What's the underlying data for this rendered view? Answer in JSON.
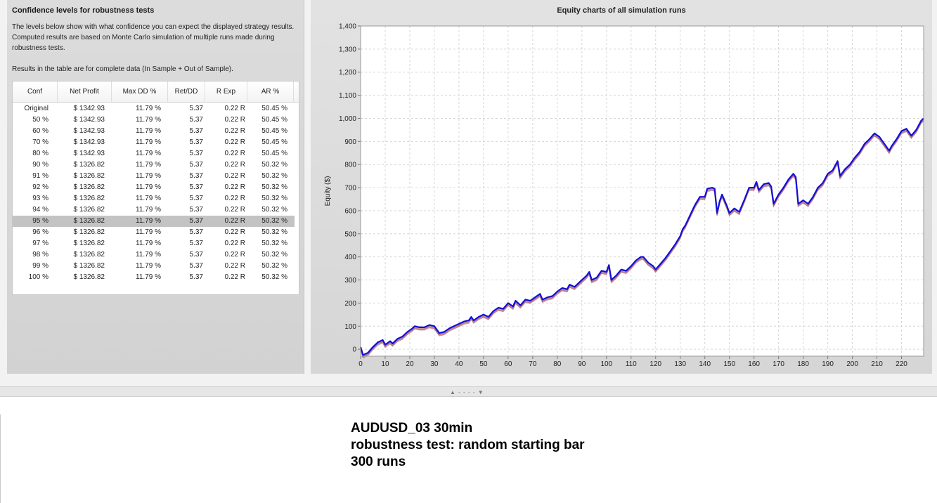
{
  "left_panel": {
    "title": "Confidence levels for robustness tests",
    "description": "The levels below show with what confidence you can expect the displayed strategy results. Computed results are based on Monte Carlo simulation of multiple runs made during robustness tests.",
    "note": "Results in the table are for complete data (In Sample + Out of Sample).",
    "table": {
      "columns": [
        "Conf",
        "Net Profit",
        "Max DD %",
        "Ret/DD",
        "R Exp",
        "AR %"
      ],
      "selected_row": 10,
      "rows": [
        [
          "Original",
          "$ 1342.93",
          "11.79 %",
          "5.37",
          "0.22 R",
          "50.45 %"
        ],
        [
          "50 %",
          "$ 1342.93",
          "11.79 %",
          "5.37",
          "0.22 R",
          "50.45 %"
        ],
        [
          "60 %",
          "$ 1342.93",
          "11.79 %",
          "5.37",
          "0.22 R",
          "50.45 %"
        ],
        [
          "70 %",
          "$ 1342.93",
          "11.79 %",
          "5.37",
          "0.22 R",
          "50.45 %"
        ],
        [
          "80 %",
          "$ 1342.93",
          "11.79 %",
          "5.37",
          "0.22 R",
          "50.45 %"
        ],
        [
          "90 %",
          "$ 1326.82",
          "11.79 %",
          "5.37",
          "0.22 R",
          "50.32 %"
        ],
        [
          "91 %",
          "$ 1326.82",
          "11.79 %",
          "5.37",
          "0.22 R",
          "50.32 %"
        ],
        [
          "92 %",
          "$ 1326.82",
          "11.79 %",
          "5.37",
          "0.22 R",
          "50.32 %"
        ],
        [
          "93 %",
          "$ 1326.82",
          "11.79 %",
          "5.37",
          "0.22 R",
          "50.32 %"
        ],
        [
          "94 %",
          "$ 1326.82",
          "11.79 %",
          "5.37",
          "0.22 R",
          "50.32 %"
        ],
        [
          "95 %",
          "$ 1326.82",
          "11.79 %",
          "5.37",
          "0.22 R",
          "50.32 %"
        ],
        [
          "96 %",
          "$ 1326.82",
          "11.79 %",
          "5.37",
          "0.22 R",
          "50.32 %"
        ],
        [
          "97 %",
          "$ 1326.82",
          "11.79 %",
          "5.37",
          "0.22 R",
          "50.32 %"
        ],
        [
          "98 %",
          "$ 1326.82",
          "11.79 %",
          "5.37",
          "0.22 R",
          "50.32 %"
        ],
        [
          "99 %",
          "$ 1326.82",
          "11.79 %",
          "5.37",
          "0.22 R",
          "50.32 %"
        ],
        [
          "100 %",
          "$ 1326.82",
          "11.79 %",
          "5.37",
          "0.22 R",
          "50.32 %"
        ]
      ]
    }
  },
  "chart_data": {
    "type": "line",
    "title": "Equity charts of all simulation runs",
    "ylabel": "Equity ($)",
    "xlabel": "",
    "xlim": [
      0,
      229
    ],
    "ylim": [
      -30,
      1400
    ],
    "xticks": [
      0,
      10,
      20,
      30,
      40,
      50,
      60,
      70,
      80,
      90,
      100,
      110,
      120,
      130,
      140,
      150,
      160,
      170,
      180,
      190,
      200,
      210,
      220
    ],
    "yticks": [
      0,
      100,
      200,
      300,
      400,
      500,
      600,
      700,
      800,
      900,
      1000,
      1100,
      1200,
      1300,
      1400
    ],
    "grid": true,
    "colors": {
      "main_series": "#1010d8",
      "other_runs": "#b06a7a"
    },
    "points": [
      [
        0,
        10
      ],
      [
        1,
        -25
      ],
      [
        3,
        -15
      ],
      [
        5,
        10
      ],
      [
        7,
        30
      ],
      [
        9,
        40
      ],
      [
        10,
        20
      ],
      [
        12,
        35
      ],
      [
        13,
        25
      ],
      [
        15,
        45
      ],
      [
        17,
        55
      ],
      [
        19,
        75
      ],
      [
        21,
        90
      ],
      [
        22,
        100
      ],
      [
        24,
        95
      ],
      [
        26,
        95
      ],
      [
        28,
        105
      ],
      [
        30,
        100
      ],
      [
        31,
        85
      ],
      [
        32,
        70
      ],
      [
        34,
        75
      ],
      [
        36,
        90
      ],
      [
        38,
        100
      ],
      [
        40,
        110
      ],
      [
        42,
        120
      ],
      [
        44,
        125
      ],
      [
        45,
        140
      ],
      [
        46,
        125
      ],
      [
        48,
        140
      ],
      [
        50,
        150
      ],
      [
        52,
        140
      ],
      [
        54,
        165
      ],
      [
        56,
        180
      ],
      [
        58,
        175
      ],
      [
        60,
        200
      ],
      [
        62,
        185
      ],
      [
        63,
        210
      ],
      [
        65,
        190
      ],
      [
        67,
        215
      ],
      [
        69,
        210
      ],
      [
        71,
        225
      ],
      [
        73,
        240
      ],
      [
        74,
        215
      ],
      [
        76,
        225
      ],
      [
        78,
        230
      ],
      [
        80,
        250
      ],
      [
        82,
        265
      ],
      [
        84,
        260
      ],
      [
        85,
        280
      ],
      [
        87,
        270
      ],
      [
        89,
        290
      ],
      [
        90,
        300
      ],
      [
        92,
        320
      ],
      [
        93,
        335
      ],
      [
        94,
        300
      ],
      [
        96,
        310
      ],
      [
        98,
        340
      ],
      [
        100,
        335
      ],
      [
        101,
        365
      ],
      [
        102,
        300
      ],
      [
        104,
        320
      ],
      [
        106,
        345
      ],
      [
        108,
        340
      ],
      [
        110,
        360
      ],
      [
        112,
        385
      ],
      [
        114,
        400
      ],
      [
        115,
        400
      ],
      [
        117,
        375
      ],
      [
        119,
        360
      ],
      [
        120,
        345
      ],
      [
        122,
        370
      ],
      [
        124,
        395
      ],
      [
        126,
        425
      ],
      [
        128,
        455
      ],
      [
        130,
        490
      ],
      [
        131,
        520
      ],
      [
        132,
        535
      ],
      [
        134,
        580
      ],
      [
        136,
        625
      ],
      [
        138,
        660
      ],
      [
        140,
        660
      ],
      [
        141,
        695
      ],
      [
        143,
        700
      ],
      [
        144,
        695
      ],
      [
        145,
        590
      ],
      [
        146,
        640
      ],
      [
        147,
        670
      ],
      [
        149,
        620
      ],
      [
        150,
        590
      ],
      [
        152,
        610
      ],
      [
        154,
        595
      ],
      [
        156,
        645
      ],
      [
        158,
        700
      ],
      [
        160,
        700
      ],
      [
        161,
        725
      ],
      [
        162,
        690
      ],
      [
        164,
        715
      ],
      [
        166,
        720
      ],
      [
        167,
        705
      ],
      [
        168,
        630
      ],
      [
        170,
        670
      ],
      [
        172,
        700
      ],
      [
        174,
        735
      ],
      [
        176,
        760
      ],
      [
        177,
        745
      ],
      [
        178,
        630
      ],
      [
        180,
        645
      ],
      [
        182,
        630
      ],
      [
        184,
        660
      ],
      [
        186,
        700
      ],
      [
        188,
        720
      ],
      [
        190,
        760
      ],
      [
        192,
        775
      ],
      [
        193,
        795
      ],
      [
        194,
        815
      ],
      [
        195,
        750
      ],
      [
        197,
        780
      ],
      [
        199,
        800
      ],
      [
        201,
        830
      ],
      [
        203,
        855
      ],
      [
        205,
        890
      ],
      [
        207,
        910
      ],
      [
        209,
        935
      ],
      [
        211,
        920
      ],
      [
        213,
        890
      ],
      [
        215,
        860
      ],
      [
        216,
        880
      ],
      [
        218,
        910
      ],
      [
        220,
        945
      ],
      [
        222,
        955
      ],
      [
        224,
        925
      ],
      [
        226,
        950
      ],
      [
        228,
        990
      ],
      [
        229,
        1000
      ]
    ]
  },
  "caption": {
    "line1": "AUDUSD_03 30min",
    "line2": "robustness test: random starting bar",
    "line3": "300 runs"
  }
}
